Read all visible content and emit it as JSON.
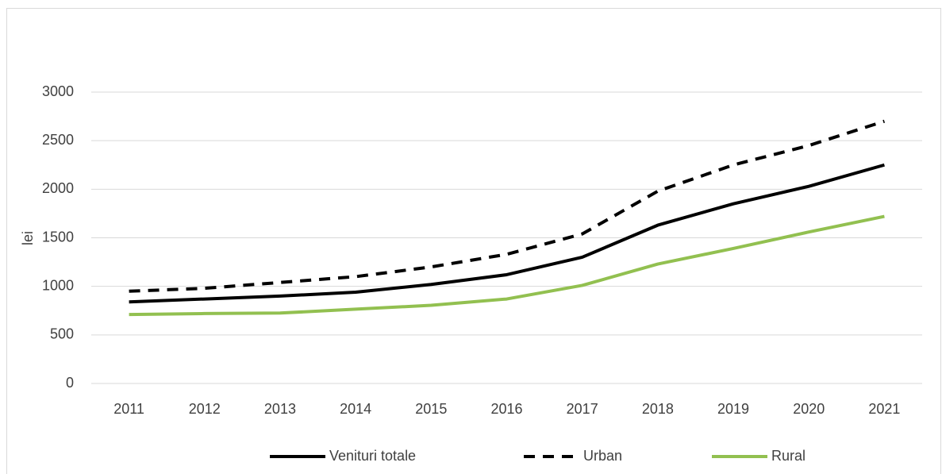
{
  "chart_data": {
    "type": "line",
    "categories": [
      "2011",
      "2012",
      "2013",
      "2014",
      "2015",
      "2016",
      "2017",
      "2018",
      "2019",
      "2020",
      "2021"
    ],
    "y_label": "lei",
    "series": [
      {
        "name": "Venituri totale",
        "color": "#000000",
        "dashed": false,
        "values": [
          840,
          870,
          900,
          940,
          1020,
          1120,
          1300,
          1630,
          1850,
          2030,
          2250
        ]
      },
      {
        "name": "Urban",
        "color": "#000000",
        "dashed": true,
        "values": [
          950,
          980,
          1040,
          1100,
          1200,
          1330,
          1540,
          1980,
          2250,
          2450,
          2700
        ]
      },
      {
        "name": "Rural",
        "color": "#92c050",
        "dashed": false,
        "values": [
          710,
          720,
          725,
          765,
          805,
          870,
          1010,
          1230,
          1390,
          1560,
          1720
        ]
      }
    ],
    "ylim": [
      0,
      3000
    ],
    "yticks": [
      0,
      500,
      1000,
      1500,
      2000,
      2500,
      3000
    ],
    "grid": true,
    "legend": "bottom"
  }
}
